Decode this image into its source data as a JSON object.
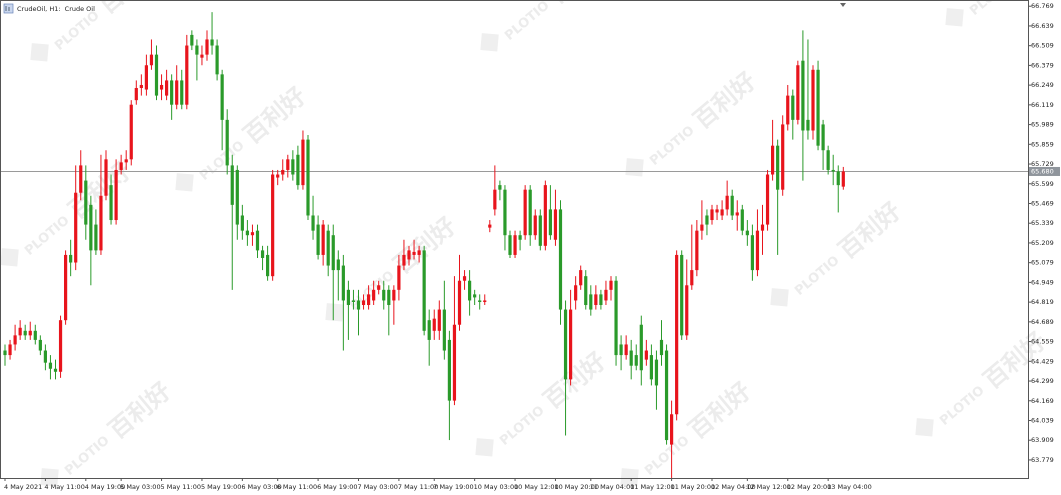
{
  "chart_data": {
    "type": "candlestick",
    "title": "CrudeOil, H1:  Crude Oil",
    "watermark": [
      "PLOTIO",
      "百利好"
    ],
    "up_color": "#e8141c",
    "down_color": "#2a9a2a",
    "current_price": {
      "value": 65.68,
      "label": "65.680"
    },
    "ylim": [
      63.66,
      66.81
    ],
    "yticks": [
      66.769,
      66.639,
      66.509,
      66.379,
      66.249,
      66.119,
      65.989,
      65.859,
      65.729,
      65.599,
      65.469,
      65.339,
      65.209,
      65.079,
      64.949,
      64.819,
      64.689,
      64.559,
      64.429,
      64.299,
      64.169,
      64.039,
      63.909,
      63.779
    ],
    "categories": [
      "4 May 2021",
      null,
      null,
      null,
      null,
      null,
      null,
      null,
      "4 May 11:00",
      null,
      null,
      null,
      null,
      null,
      null,
      null,
      "4 May 19:00",
      null,
      null,
      null,
      null,
      null,
      null,
      "5 May 03:00",
      null,
      null,
      null,
      null,
      null,
      null,
      null,
      "5 May 11:00",
      null,
      null,
      null,
      null,
      null,
      null,
      null,
      "5 May 19:00",
      null,
      null,
      null,
      null,
      null,
      null,
      null,
      "6 May 03:00",
      null,
      null,
      null,
      null,
      null,
      null,
      "6 May 11:00",
      null,
      null,
      null,
      null,
      null,
      null,
      null,
      "6 May 19:00",
      null,
      null,
      null,
      null,
      null,
      null,
      null,
      "7 May 03:00",
      null,
      null,
      null,
      null,
      null,
      null,
      null,
      "7 May 11:00",
      null,
      null,
      null,
      null,
      null,
      null,
      "7 May 19:00",
      null,
      null,
      null,
      null,
      null,
      null,
      null,
      "10 May 03:00",
      null,
      null,
      null,
      null,
      null,
      null,
      null,
      "10 May 12:00",
      null,
      null,
      null,
      null,
      null,
      null,
      null,
      "10 May 20:00",
      null,
      null,
      null,
      null,
      null,
      null,
      "11 May 04:00",
      null,
      null,
      null,
      null,
      null,
      null,
      null,
      "11 May 12:00",
      null,
      null,
      null,
      null,
      null,
      null,
      null,
      "11 May 20:00",
      null,
      null,
      null,
      null,
      null,
      null,
      null,
      "12 May 04:00",
      null,
      null,
      null,
      null,
      null,
      null,
      "12 May 12:00",
      null,
      null,
      null,
      null,
      null,
      null,
      null,
      "12 May 20:00",
      null,
      null,
      null,
      null,
      null,
      null,
      null,
      "13 May 04:00",
      null,
      null,
      null
    ],
    "open": [
      64.5,
      64.47,
      64.54,
      64.6,
      64.63,
      64.6,
      64.63,
      64.57,
      64.5,
      64.42,
      64.38,
      64.36,
      64.7,
      65.13,
      65.08,
      65.54,
      65.62,
      65.46,
      65.33,
      65.16,
      65.52,
      65.59,
      65.36,
      65.69,
      65.74,
      65.76,
      66.15,
      66.23,
      66.22,
      66.38,
      66.45,
      66.22,
      66.18,
      66.28,
      66.12,
      66.28,
      66.12,
      66.58,
      66.51,
      66.43,
      66.45,
      66.55,
      66.51,
      66.32,
      66.02,
      65.72,
      65.69,
      65.39,
      65.29,
      65.26,
      65.29,
      65.16,
      65.13,
      64.99,
      65.64,
      65.66,
      65.69,
      65.76,
      65.79,
      65.59,
      65.89,
      65.39,
      65.33,
      65.13,
      65.29,
      65.26,
      65.1,
      65.06,
      64.9,
      64.83,
      64.83,
      64.8,
      64.8,
      64.83,
      64.9,
      64.9,
      64.9,
      64.83,
      64.9,
      65.06,
      65.1,
      65.13,
      65.13,
      65.16,
      64.7,
      64.63,
      64.63,
      64.77,
      64.57,
      64.17,
      64.67,
      64.96,
      64.96,
      64.87,
      64.83,
      64.82,
      65.31,
      65.43,
      65.59,
      65.56,
      65.26,
      65.13,
      65.26,
      65.26,
      65.56,
      65.26,
      65.39,
      65.19,
      65.43,
      65.23,
      65.43,
      64.77,
      64.31,
      64.83,
      64.93,
      64.99,
      64.87,
      64.8,
      64.87,
      64.83,
      64.9,
      64.96,
      64.54,
      64.47,
      64.5,
      64.47,
      64.67,
      64.44,
      64.47,
      64.44,
      64.57,
      64.5,
      63.88,
      64.08,
      65.13,
      64.6,
      64.93,
      65.03,
      65.29,
      65.39,
      65.36,
      65.41,
      65.39,
      65.43,
      65.52,
      65.39,
      65.43,
      65.29,
      65.26,
      65.03,
      65.29,
      65.33,
      65.66,
      65.85,
      65.56,
      65.99,
      66.18,
      66.02,
      66.41,
      66.02,
      65.95,
      66.35,
      65.99,
      65.82,
      65.69,
      65.68,
      65.58
    ],
    "high": [
      64.54,
      64.57,
      64.67,
      64.7,
      64.67,
      64.69,
      64.67,
      64.6,
      64.54,
      64.47,
      64.44,
      64.73,
      65.16,
      65.23,
      65.72,
      65.82,
      65.72,
      65.52,
      65.43,
      65.79,
      65.82,
      65.66,
      65.76,
      65.79,
      65.82,
      66.15,
      66.28,
      66.32,
      66.45,
      66.55,
      66.51,
      66.32,
      66.35,
      66.32,
      66.38,
      66.35,
      66.58,
      66.61,
      66.55,
      66.51,
      66.61,
      66.73,
      66.55,
      66.35,
      66.09,
      65.79,
      65.72,
      65.46,
      65.36,
      65.33,
      65.33,
      65.19,
      65.19,
      65.69,
      65.69,
      65.76,
      65.79,
      65.82,
      65.85,
      65.95,
      65.92,
      65.52,
      65.39,
      65.36,
      65.33,
      65.33,
      65.16,
      65.13,
      64.96,
      64.9,
      64.9,
      64.87,
      64.93,
      64.96,
      64.96,
      64.96,
      64.93,
      64.93,
      65.13,
      65.23,
      65.19,
      65.23,
      65.19,
      65.19,
      64.77,
      64.77,
      64.83,
      64.96,
      64.63,
      64.99,
      65.13,
      65.03,
      65.03,
      64.9,
      64.87,
      64.87,
      65.36,
      65.72,
      65.62,
      65.59,
      65.29,
      65.29,
      65.29,
      65.59,
      65.59,
      65.43,
      65.43,
      65.62,
      65.59,
      65.56,
      65.49,
      64.83,
      64.9,
      64.99,
      65.06,
      65.03,
      64.93,
      64.93,
      64.9,
      64.96,
      64.99,
      64.99,
      64.6,
      64.6,
      64.57,
      64.54,
      64.73,
      64.57,
      64.54,
      64.5,
      64.7,
      64.54,
      64.17,
      65.16,
      65.16,
      65.1,
      65.33,
      65.36,
      65.49,
      65.43,
      65.46,
      65.46,
      65.49,
      65.62,
      65.56,
      65.49,
      65.46,
      65.36,
      65.33,
      65.43,
      65.46,
      65.69,
      66.02,
      65.89,
      66.05,
      66.25,
      66.22,
      66.41,
      66.61,
      66.55,
      66.38,
      66.41,
      66.02,
      65.85,
      65.79,
      65.72,
      65.71
    ],
    "low": [
      64.4,
      64.44,
      64.5,
      64.57,
      64.57,
      64.57,
      64.54,
      64.47,
      64.37,
      64.31,
      64.31,
      64.32,
      64.67,
      64.99,
      65.03,
      65.49,
      65.23,
      64.93,
      65.13,
      65.13,
      65.49,
      65.33,
      65.33,
      65.66,
      65.69,
      65.72,
      66.12,
      66.18,
      66.18,
      66.35,
      66.15,
      66.15,
      66.15,
      66.02,
      66.09,
      66.09,
      66.09,
      66.48,
      66.28,
      66.38,
      66.41,
      66.45,
      66.28,
      65.82,
      65.66,
      64.9,
      65.23,
      65.23,
      65.19,
      65.19,
      65.11,
      65.03,
      64.96,
      64.96,
      65.59,
      65.62,
      65.64,
      65.62,
      65.56,
      65.56,
      65.36,
      65.23,
      65.1,
      65.06,
      64.99,
      64.7,
      64.83,
      64.5,
      64.57,
      64.77,
      64.6,
      64.77,
      64.77,
      64.8,
      64.87,
      64.77,
      64.6,
      64.67,
      64.83,
      65.03,
      65.06,
      65.1,
      65.08,
      64.6,
      64.4,
      64.57,
      64.57,
      64.44,
      63.91,
      64.14,
      64.63,
      64.9,
      64.73,
      64.8,
      64.77,
      64.8,
      65.28,
      65.39,
      65.49,
      65.16,
      65.11,
      65.11,
      65.16,
      65.23,
      65.19,
      65.23,
      65.16,
      65.16,
      65.23,
      65.19,
      64.67,
      63.94,
      64.27,
      64.77,
      64.9,
      64.77,
      64.73,
      64.77,
      64.77,
      64.8,
      64.83,
      64.4,
      64.37,
      64.44,
      64.31,
      64.37,
      64.27,
      64.4,
      64.27,
      64.11,
      64.4,
      63.88,
      63.66,
      64.04,
      64.57,
      64.57,
      64.9,
      64.99,
      65.23,
      65.26,
      65.33,
      65.36,
      65.36,
      65.39,
      65.36,
      65.29,
      65.26,
      65.19,
      64.96,
      64.99,
      65.13,
      65.29,
      65.62,
      65.13,
      65.52,
      65.95,
      65.89,
      65.99,
      65.62,
      65.89,
      65.89,
      65.82,
      65.69,
      65.66,
      65.59,
      65.41,
      65.56
    ],
    "close": [
      64.47,
      64.54,
      64.6,
      64.65,
      64.6,
      64.63,
      64.57,
      64.5,
      64.42,
      64.38,
      64.36,
      64.7,
      65.13,
      65.08,
      65.54,
      65.72,
      65.33,
      65.16,
      65.16,
      65.52,
      65.76,
      65.36,
      65.69,
      65.74,
      65.76,
      66.12,
      66.23,
      66.25,
      66.38,
      66.45,
      66.18,
      66.25,
      66.28,
      66.12,
      66.28,
      66.12,
      66.51,
      66.51,
      66.45,
      66.45,
      66.55,
      66.51,
      66.32,
      66.02,
      65.72,
      65.46,
      65.33,
      65.29,
      65.26,
      65.28,
      65.16,
      65.11,
      64.99,
      65.66,
      65.66,
      65.69,
      65.76,
      65.66,
      65.59,
      65.89,
      65.39,
      65.29,
      65.13,
      65.33,
      65.06,
      65.03,
      65.03,
      64.83,
      64.8,
      64.82,
      64.77,
      64.83,
      64.87,
      64.9,
      64.93,
      64.83,
      64.8,
      64.9,
      65.06,
      65.13,
      65.16,
      65.15,
      65.16,
      64.63,
      64.57,
      64.71,
      64.77,
      64.5,
      64.17,
      64.67,
      64.96,
      64.99,
      64.83,
      64.85,
      64.82,
      64.83,
      65.33,
      65.56,
      65.56,
      65.26,
      65.13,
      65.26,
      65.23,
      65.56,
      65.26,
      65.39,
      65.19,
      65.59,
      65.26,
      65.43,
      64.77,
      64.31,
      64.77,
      64.93,
      65.03,
      64.8,
      64.77,
      64.87,
      64.8,
      64.9,
      64.96,
      64.47,
      64.47,
      64.54,
      64.4,
      64.4,
      64.37,
      64.5,
      64.31,
      64.27,
      64.47,
      63.91,
      64.08,
      65.13,
      64.6,
      64.93,
      65.03,
      65.29,
      65.33,
      65.33,
      65.43,
      65.43,
      65.43,
      65.52,
      65.39,
      65.41,
      65.29,
      65.26,
      65.03,
      65.29,
      65.33,
      65.66,
      65.85,
      65.56,
      65.99,
      66.18,
      66.02,
      66.38,
      65.95,
      65.95,
      66.35,
      65.85,
      65.82,
      65.69,
      65.68,
      65.59,
      65.68
    ]
  }
}
